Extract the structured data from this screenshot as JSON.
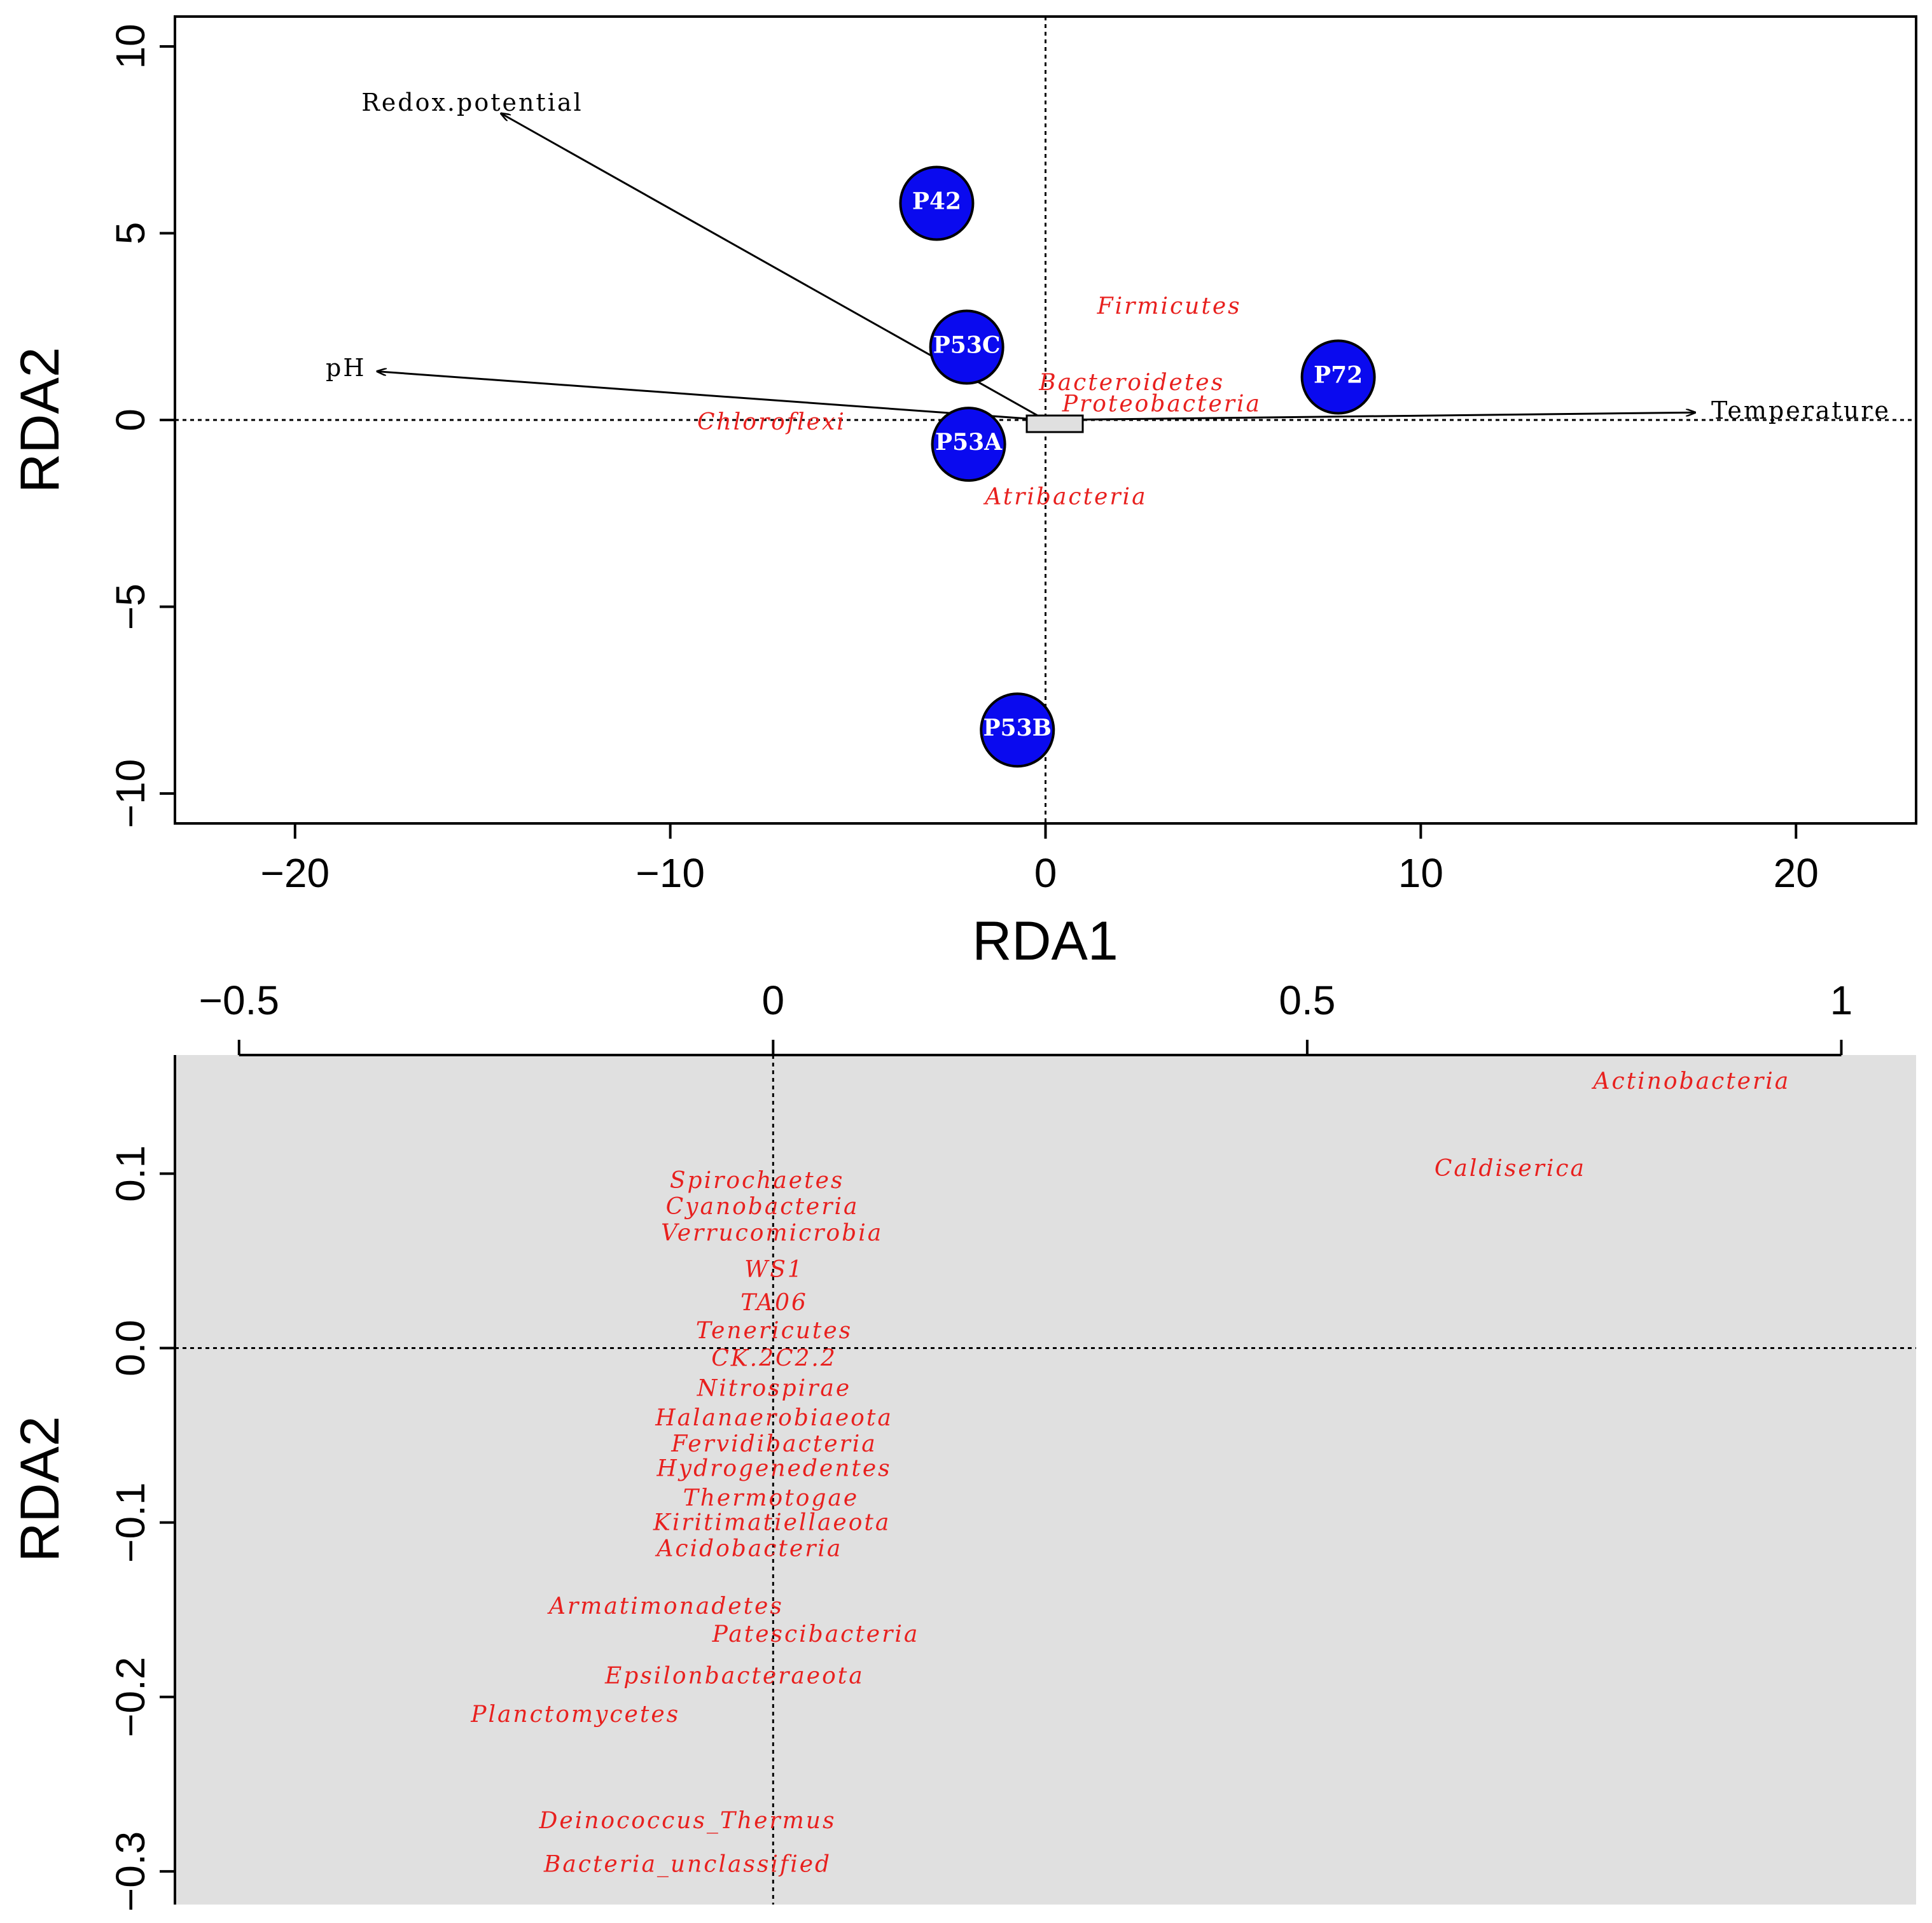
{
  "chart_data": [
    {
      "type": "scatter",
      "title": "",
      "xlabel": "RDA1",
      "ylabel": "RDA2",
      "xlim": [
        -23.2,
        23.2
      ],
      "ylim": [
        -10.8,
        10.8
      ],
      "xticks": [
        -20,
        -10,
        0,
        10,
        20
      ],
      "yticks": [
        -10,
        -5,
        0,
        5,
        10
      ],
      "xtick_labels": [
        "−20",
        "−10",
        "0",
        "10",
        "20"
      ],
      "ytick_labels": [
        "−10",
        "−5",
        "0",
        "5",
        "10"
      ],
      "sites": [
        {
          "name": "P42",
          "x": -2.9,
          "y": 5.8
        },
        {
          "name": "P53C",
          "x": -2.1,
          "y": 1.95
        },
        {
          "name": "P53A",
          "x": -2.05,
          "y": -0.65
        },
        {
          "name": "P72",
          "x": 7.8,
          "y": 1.15
        },
        {
          "name": "P53B",
          "x": -0.75,
          "y": -8.3
        }
      ],
      "env_arrows": [
        {
          "name": "Redox.potential",
          "x": -14.5,
          "y": 8.2
        },
        {
          "name": "pH",
          "x": -17.8,
          "y": 1.3
        },
        {
          "name": "Temperature",
          "x": 17.3,
          "y": 0.2
        }
      ],
      "species": [
        {
          "name": "Firmicutes",
          "x": 3.3,
          "y": 3.0
        },
        {
          "name": "Bacteroidetes",
          "x": 2.3,
          "y": 0.95
        },
        {
          "name": "Proteobacteria",
          "x": 3.1,
          "y": 0.38
        },
        {
          "name": "Chloroflexi",
          "x": -7.3,
          "y": -0.1
        },
        {
          "name": "Atribacteria",
          "x": 0.55,
          "y": -2.1
        }
      ]
    },
    {
      "type": "scatter",
      "title": "",
      "xlabel": "",
      "ylabel": "RDA2",
      "xlim": [
        -0.56,
        1.07
      ],
      "ylim": [
        -0.319,
        0.168
      ],
      "x_axis_position": "top",
      "xticks": [
        -0.5,
        0,
        0.5,
        1
      ],
      "yticks": [
        -0.3,
        -0.2,
        -0.1,
        0.0,
        0.1
      ],
      "xtick_labels": [
        "−0.5",
        "0",
        "0.5",
        "1"
      ],
      "ytick_labels": [
        "−0.3",
        "−0.2",
        "−0.1",
        "0.0",
        "0.1"
      ],
      "background": "#e0e0e0",
      "species": [
        {
          "name": "Actinobacteria",
          "x": 0.86,
          "y": 0.152
        },
        {
          "name": "Caldiserica",
          "x": 0.69,
          "y": 0.102
        },
        {
          "name": "Spirochaetes",
          "x": -0.015,
          "y": 0.095
        },
        {
          "name": "Cyanobacteria",
          "x": -0.01,
          "y": 0.08
        },
        {
          "name": "Verrucomicrobia",
          "x": -0.001,
          "y": 0.065
        },
        {
          "name": "WS1",
          "x": 0.001,
          "y": 0.044
        },
        {
          "name": "TA06",
          "x": 0.001,
          "y": 0.025
        },
        {
          "name": "Tenericutes",
          "x": 0.001,
          "y": 0.009
        },
        {
          "name": "CK.2C2.2",
          "x": 0.001,
          "y": -0.007
        },
        {
          "name": "Nitrospirae",
          "x": 0.001,
          "y": -0.024
        },
        {
          "name": "Halanaerobiaeota",
          "x": 0.001,
          "y": -0.041
        },
        {
          "name": "Fervidibacteria",
          "x": 0.001,
          "y": -0.056
        },
        {
          "name": "Hydrogenedentes",
          "x": 0.001,
          "y": -0.07
        },
        {
          "name": "Thermotogae",
          "x": -0.002,
          "y": -0.087
        },
        {
          "name": "Kiritimatiellaeota",
          "x": -0.001,
          "y": -0.101
        },
        {
          "name": "Acidobacteria",
          "x": -0.022,
          "y": -0.116
        },
        {
          "name": "Armatimonadetes",
          "x": -0.1,
          "y": -0.149
        },
        {
          "name": "Patescibacteria",
          "x": 0.04,
          "y": -0.165
        },
        {
          "name": "Epsilonbacteraeota",
          "x": -0.036,
          "y": -0.189
        },
        {
          "name": "Planctomycetes",
          "x": -0.185,
          "y": -0.211
        },
        {
          "name": "Deinococcus_Thermus",
          "x": -0.08,
          "y": -0.272
        },
        {
          "name": "Bacteria_unclassified",
          "x": -0.08,
          "y": -0.297
        }
      ]
    }
  ]
}
